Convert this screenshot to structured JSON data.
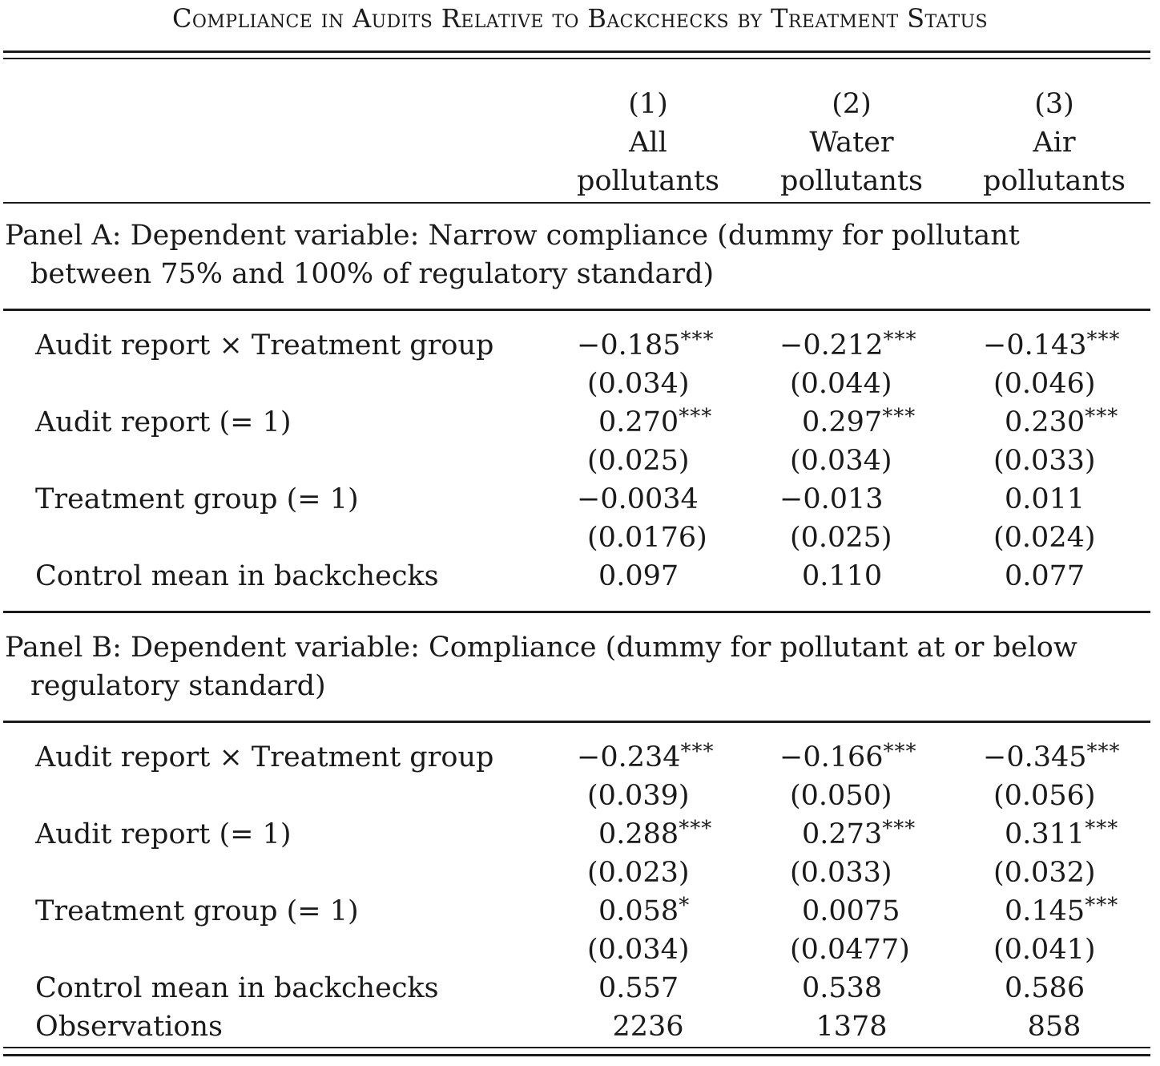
{
  "title": "Compliance in Audits Relative to Backchecks by Treatment Status",
  "columns": [
    {
      "number": "(1)",
      "line1": "All",
      "line2": "pollutants"
    },
    {
      "number": "(2)",
      "line1": "Water",
      "line2": "pollutants"
    },
    {
      "number": "(3)",
      "line1": "Air",
      "line2": "pollutants"
    }
  ],
  "panel_a": {
    "title_line1": "Panel A: Dependent variable: Narrow compliance (dummy for pollutant",
    "title_line2": "between 75% and 100% of regulatory standard)",
    "rows": [
      {
        "label": "Audit report × Treatment group",
        "values": [
          {
            "coef": "−0.185",
            "stars": "***",
            "se": "(0.034)"
          },
          {
            "coef": "−0.212",
            "stars": "***",
            "se": "(0.044)"
          },
          {
            "coef": "−0.143",
            "stars": "***",
            "se": "(0.046)"
          }
        ]
      },
      {
        "label": "Audit report (= 1)",
        "values": [
          {
            "coef": "0.270",
            "stars": "***",
            "se": "(0.025)"
          },
          {
            "coef": "0.297",
            "stars": "***",
            "se": "(0.034)"
          },
          {
            "coef": "0.230",
            "stars": "***",
            "se": "(0.033)"
          }
        ]
      },
      {
        "label": "Treatment group (= 1)",
        "values": [
          {
            "coef": "−0.0034",
            "stars": "",
            "se": "(0.0176)"
          },
          {
            "coef": "−0.013",
            "stars": "",
            "se": "(0.025)"
          },
          {
            "coef": "0.011",
            "stars": "",
            "se": "(0.024)"
          }
        ]
      }
    ],
    "control_mean_label": "Control mean in backchecks",
    "control_mean": [
      "0.097",
      "0.110",
      "0.077"
    ]
  },
  "panel_b": {
    "title_line1": "Panel B: Dependent variable: Compliance (dummy for pollutant at or below",
    "title_line2": "regulatory standard)",
    "rows": [
      {
        "label": "Audit report × Treatment group",
        "values": [
          {
            "coef": "−0.234",
            "stars": "***",
            "se": "(0.039)"
          },
          {
            "coef": "−0.166",
            "stars": "***",
            "se": "(0.050)"
          },
          {
            "coef": "−0.345",
            "stars": "***",
            "se": "(0.056)"
          }
        ]
      },
      {
        "label": "Audit report (= 1)",
        "values": [
          {
            "coef": "0.288",
            "stars": "***",
            "se": "(0.023)"
          },
          {
            "coef": "0.273",
            "stars": "***",
            "se": "(0.033)"
          },
          {
            "coef": "0.311",
            "stars": "***",
            "se": "(0.032)"
          }
        ]
      },
      {
        "label": "Treatment group (= 1)",
        "values": [
          {
            "coef": "0.058",
            "stars": "*",
            "se": "(0.034)"
          },
          {
            "coef": "0.0075",
            "stars": "",
            "se": "(0.0477)"
          },
          {
            "coef": "0.145",
            "stars": "***",
            "se": "(0.041)"
          }
        ]
      }
    ],
    "control_mean_label": "Control mean in backchecks",
    "control_mean": [
      "0.557",
      "0.538",
      "0.586"
    ],
    "observations_label": "Observations",
    "observations": [
      "2236",
      "1378",
      "858"
    ]
  }
}
